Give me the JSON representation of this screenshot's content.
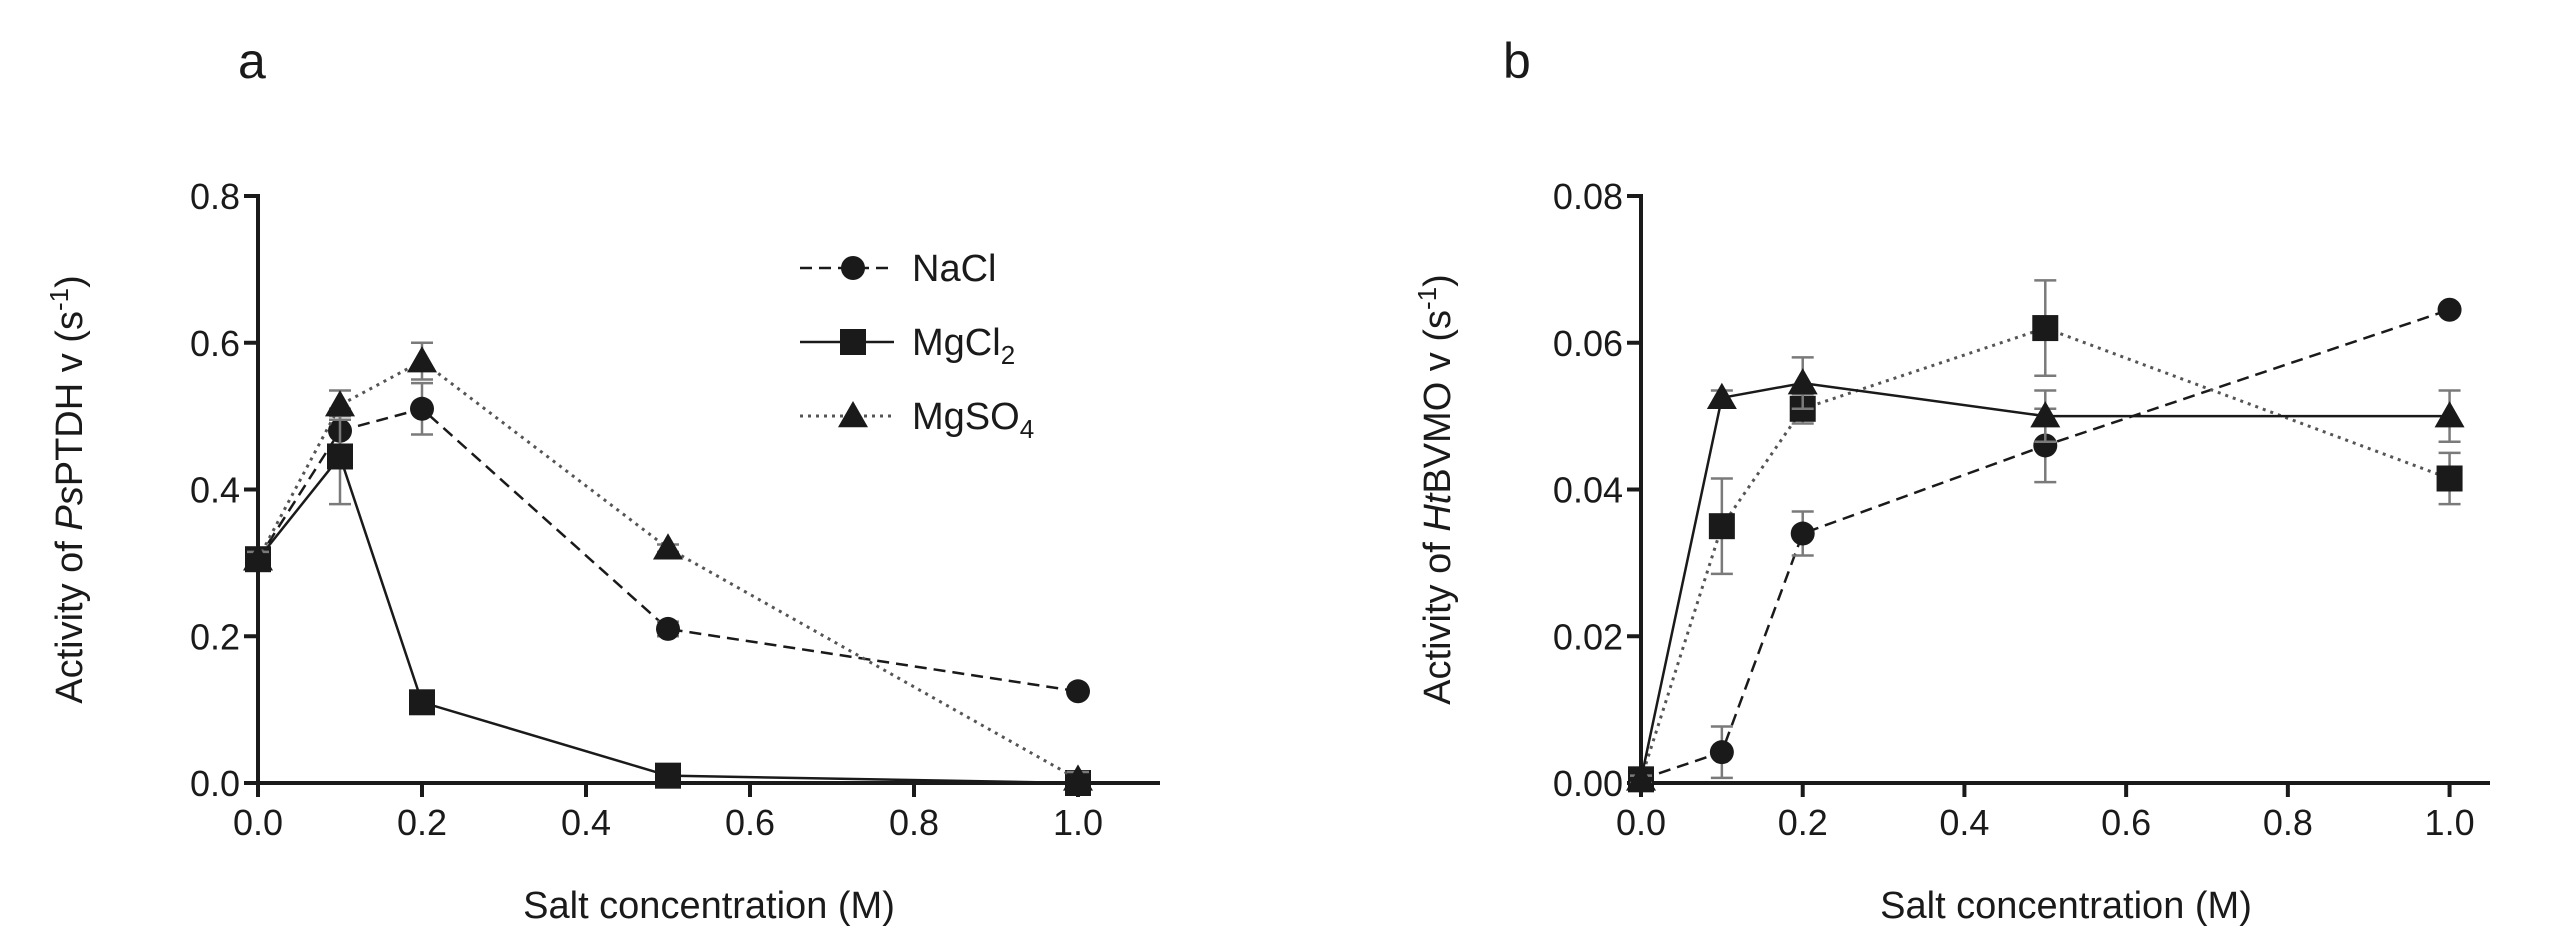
{
  "chart_data": [
    {
      "panel": "a",
      "type": "line",
      "xlabel": "Salt concentration (M)",
      "ylabel": {
        "pre": "Activity of ",
        "italic": "Ps",
        "post": "PTDH v (s",
        "sup": "-1",
        "end": ")"
      },
      "xlim": [
        0,
        1.1
      ],
      "ylim": [
        0,
        0.8
      ],
      "xticks": [
        "0.0",
        "0.2",
        "0.4",
        "0.6",
        "0.8",
        "1.0"
      ],
      "yticks": [
        "0.0",
        "0.2",
        "0.4",
        "0.6",
        "0.8"
      ],
      "legend_position": "top-right",
      "series": [
        {
          "name": "NaCl",
          "label": "NaCl",
          "sub": "",
          "marker": "circle",
          "line": "dashed",
          "x": [
            0,
            0.1,
            0.2,
            0.5,
            1.0
          ],
          "y": [
            0.305,
            0.48,
            0.51,
            0.21,
            0.125
          ],
          "err": [
            0.01,
            0.02,
            0.035,
            0.01,
            0.005
          ]
        },
        {
          "name": "MgCl2",
          "label": "MgCl",
          "sub": "2",
          "marker": "square",
          "line": "solid",
          "x": [
            0,
            0.1,
            0.2,
            0.5,
            1.0
          ],
          "y": [
            0.305,
            0.445,
            0.11,
            0.01,
            0.0
          ],
          "err": [
            0.01,
            0.065,
            0.01,
            0.005,
            0.005
          ]
        },
        {
          "name": "MgSO4",
          "label": "MgSO",
          "sub": "4",
          "marker": "triangle",
          "line": "dotted",
          "x": [
            0,
            0.1,
            0.2,
            0.5,
            1.0
          ],
          "y": [
            0.305,
            0.515,
            0.575,
            0.32,
            0.005
          ],
          "err": [
            0.01,
            0.02,
            0.025,
            0.005,
            0.01
          ]
        }
      ]
    },
    {
      "panel": "b",
      "type": "line",
      "xlabel": "Salt concentration (M)",
      "ylabel": {
        "pre": "Activity of ",
        "italic": "Ht",
        "post": "BVMO v (s",
        "sup": "-1",
        "end": ")"
      },
      "xlim": [
        0,
        1.05
      ],
      "ylim": [
        0,
        0.08
      ],
      "xticks": [
        "0.0",
        "0.2",
        "0.4",
        "0.6",
        "0.8",
        "1.0"
      ],
      "yticks": [
        "0.00",
        "0.02",
        "0.04",
        "0.06",
        "0.08"
      ],
      "series": [
        {
          "name": "NaCl",
          "marker": "circle",
          "line": "dashed",
          "x": [
            0,
            0.1,
            0.2,
            0.5,
            1.0
          ],
          "y": [
            0.0005,
            0.0042,
            0.034,
            0.046,
            0.0645
          ],
          "err": [
            0.0005,
            0.0035,
            0.003,
            0.005,
            0.0005
          ]
        },
        {
          "name": "MgCl2",
          "marker": "square",
          "line": "dotted",
          "x": [
            0,
            0.1,
            0.2,
            0.5,
            1.0
          ],
          "y": [
            0.0005,
            0.035,
            0.051,
            0.062,
            0.0415
          ],
          "err": [
            0.0005,
            0.0065,
            0.002,
            0.0065,
            0.0035
          ]
        },
        {
          "name": "MgSO4",
          "marker": "triangle",
          "line": "solid",
          "x": [
            0,
            0.1,
            0.2,
            0.5,
            1.0
          ],
          "y": [
            0.0005,
            0.0525,
            0.0545,
            0.05,
            0.05
          ],
          "err": [
            0.0005,
            0.001,
            0.0035,
            0.0035,
            0.0035
          ]
        }
      ]
    }
  ],
  "colors": {
    "ink": "#1a1a1a",
    "errorbar": "#7a7a7a",
    "background": "#ffffff"
  }
}
